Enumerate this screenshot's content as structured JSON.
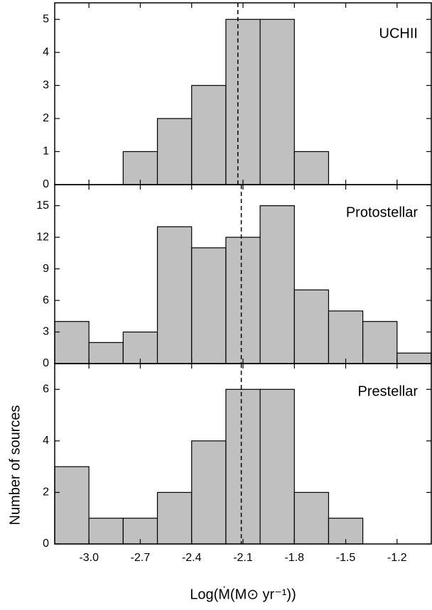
{
  "chart_data": [
    {
      "type": "histogram",
      "label": "UCHII",
      "bins": [
        -3.2,
        -3.0,
        -2.8,
        -2.6,
        -2.4,
        -2.2,
        -2.0,
        -1.8,
        -1.6,
        -1.4,
        -1.2,
        -1.0
      ],
      "values": [
        0,
        0,
        1,
        2,
        3,
        5,
        5,
        1,
        0,
        0,
        0
      ],
      "color": "#c0c0c0",
      "vline": -2.13,
      "xlim": [
        -3.2,
        -1.0
      ],
      "ylim": [
        0,
        5.5
      ],
      "yticks": [
        0,
        1,
        2,
        3,
        4,
        5
      ]
    },
    {
      "type": "histogram",
      "label": "Protostellar",
      "bins": [
        -3.2,
        -3.0,
        -2.8,
        -2.6,
        -2.4,
        -2.2,
        -2.0,
        -1.8,
        -1.6,
        -1.4,
        -1.2,
        -1.0
      ],
      "values": [
        4,
        2,
        3,
        13,
        11,
        12,
        15,
        7,
        5,
        4,
        1
      ],
      "color": "#c0c0c0",
      "vline": -2.11,
      "xlim": [
        -3.2,
        -1.0
      ],
      "ylim": [
        0,
        17
      ],
      "yticks": [
        0,
        3,
        6,
        9,
        12,
        15
      ]
    },
    {
      "type": "histogram",
      "label": "Prestellar",
      "bins": [
        -3.2,
        -3.0,
        -2.8,
        -2.6,
        -2.4,
        -2.2,
        -2.0,
        -1.8,
        -1.6,
        -1.4,
        -1.2,
        -1.0
      ],
      "values": [
        3,
        1,
        1,
        2,
        4,
        6,
        6,
        2,
        1,
        0,
        0
      ],
      "color": "#c0c0c0",
      "vline": -2.11,
      "xlim": [
        -3.2,
        -1.0
      ],
      "ylim": [
        0,
        7
      ],
      "yticks": [
        0,
        2,
        4,
        6
      ],
      "xticks": [
        {
          "value": -3,
          "label": "-3.0"
        },
        -2.7,
        -2.4,
        -2.1,
        -1.8,
        -1.5,
        -1.2
      ],
      "xlabel": "Log(Ṁ(M⊙ yr⁻¹))",
      "ylabel": "Number of sources"
    }
  ]
}
